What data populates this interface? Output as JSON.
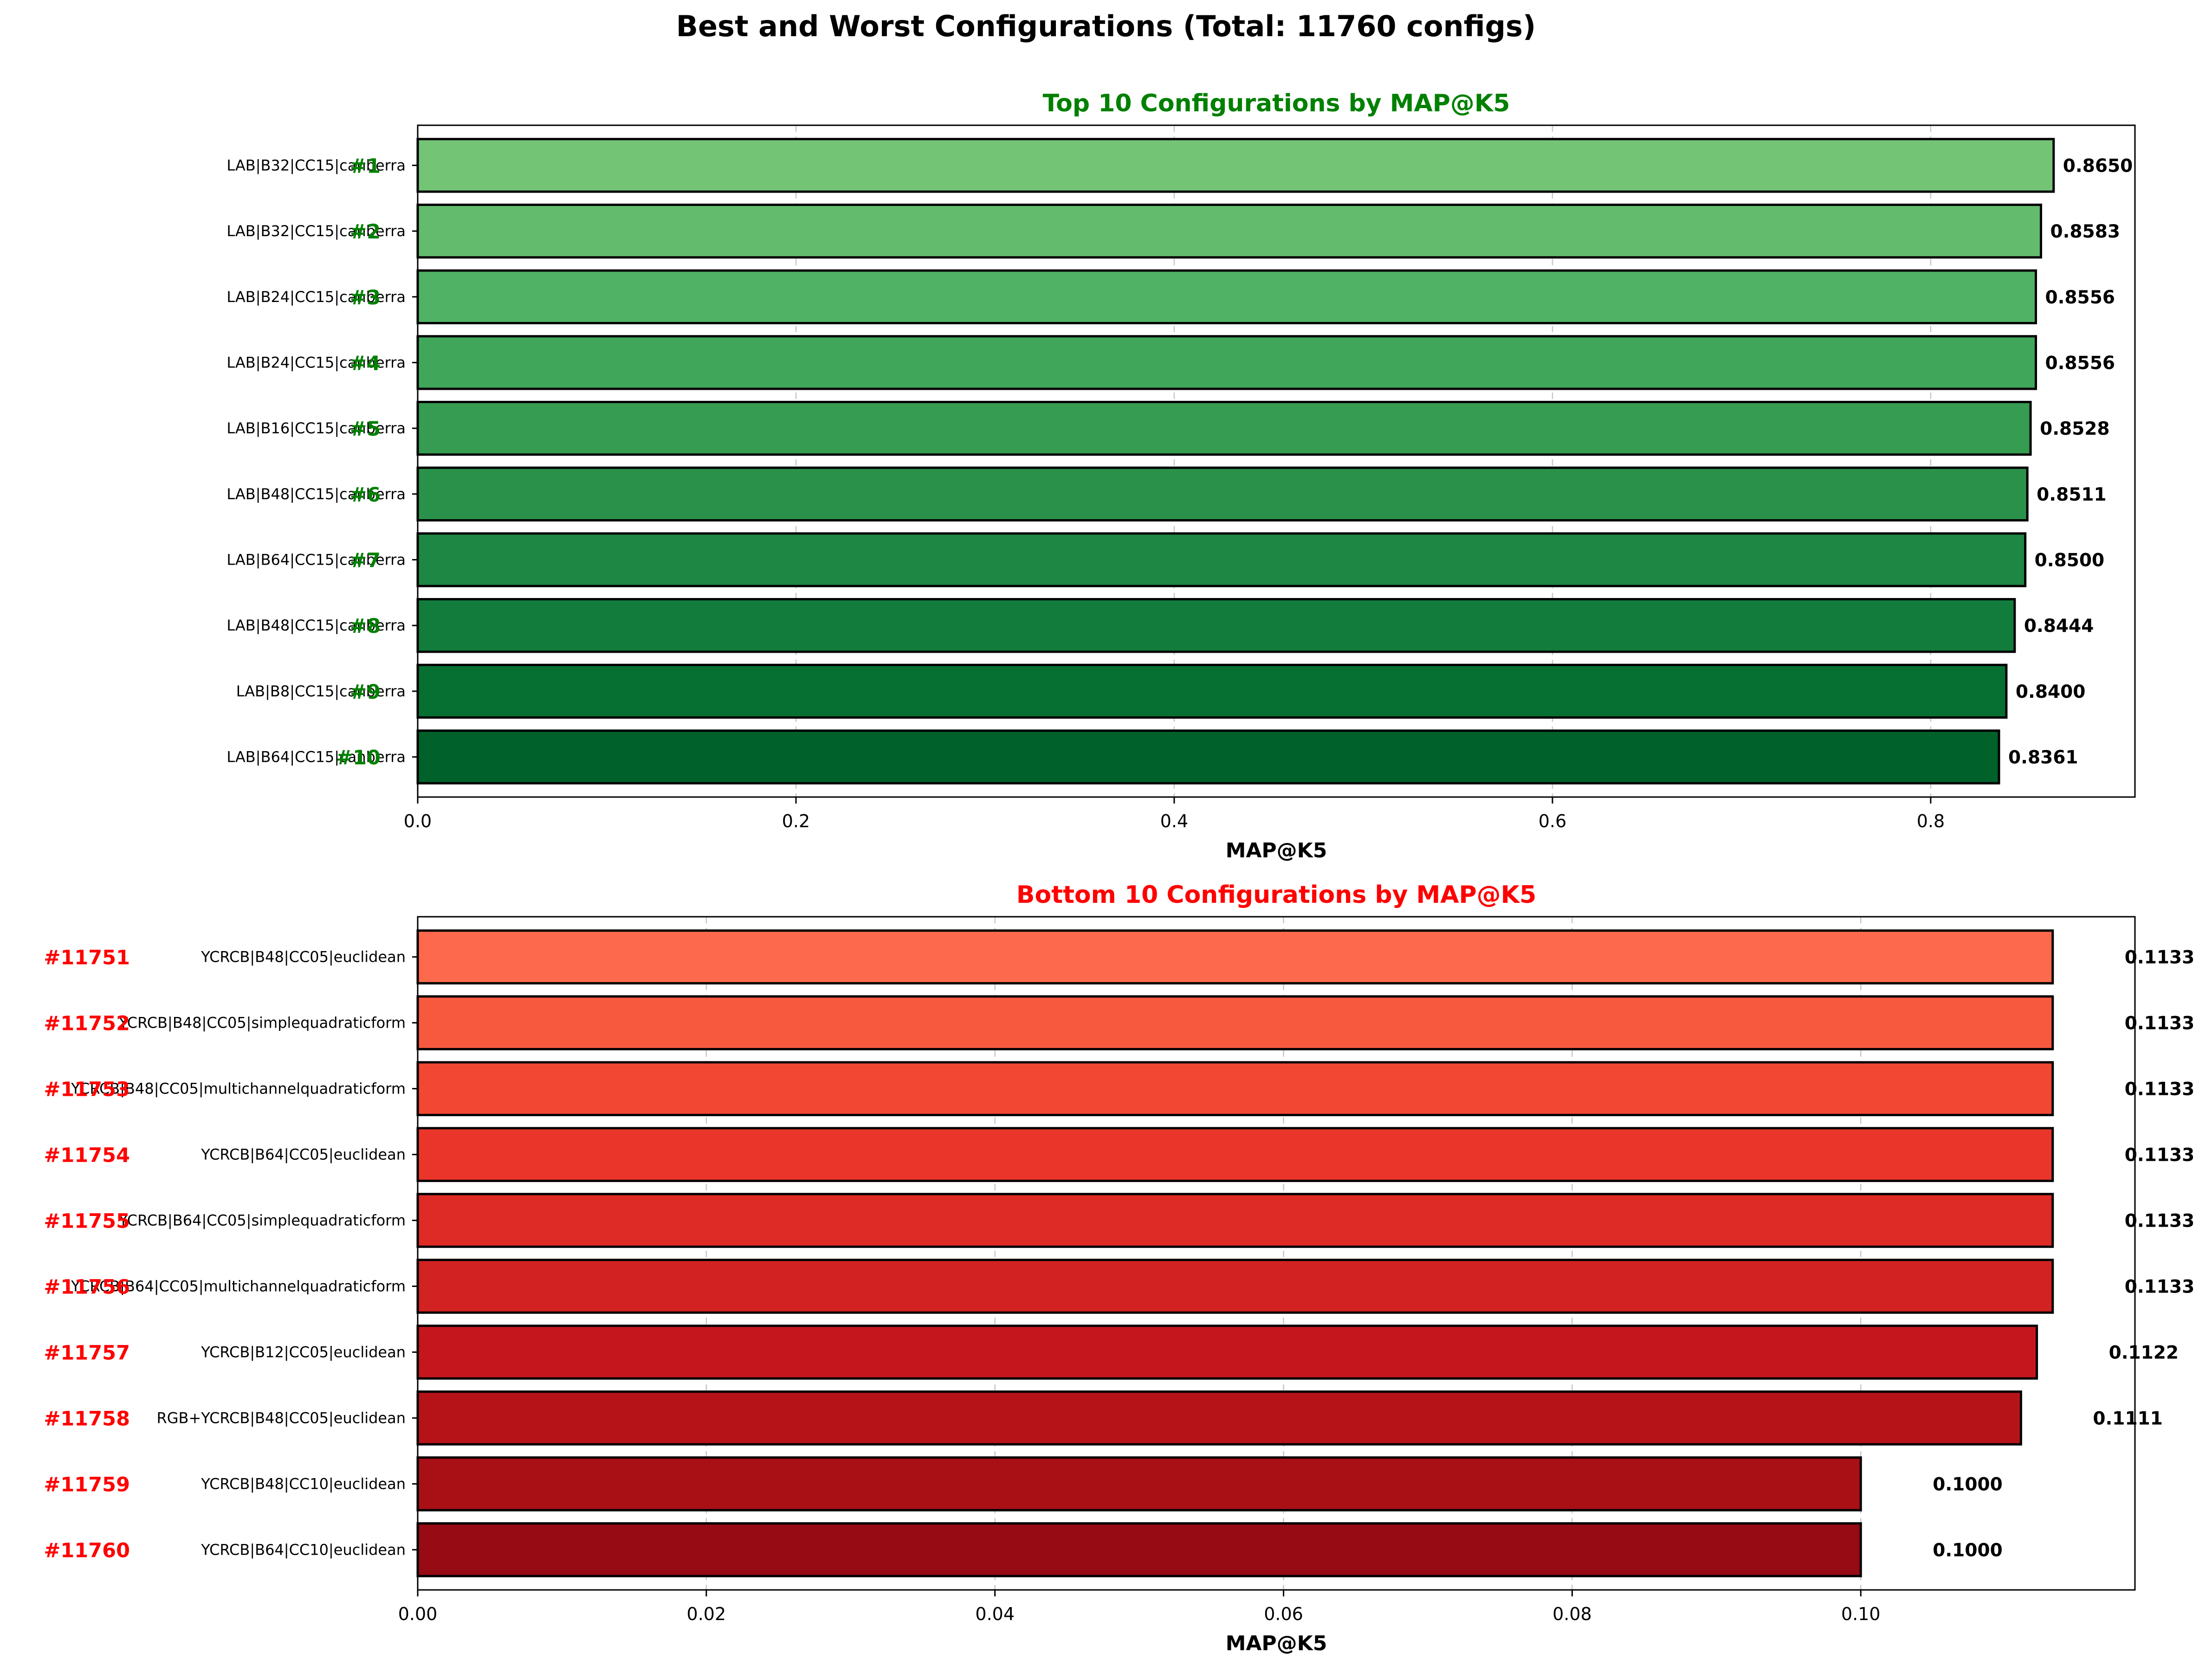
{
  "figure": {
    "suptitle": "Best and Worst Configurations (Total: 11760 configs)"
  },
  "chart_data": [
    {
      "type": "bar",
      "orientation": "horizontal",
      "title": "Top 10 Configurations by MAP@K5",
      "title_color": "#008000",
      "xlabel": "MAP@K5",
      "ylabel": "",
      "xlim": [
        0,
        0.908
      ],
      "xticks": [
        0.0,
        0.2,
        0.4,
        0.6,
        0.8
      ],
      "tick_labels": [
        "0.0",
        "0.2",
        "0.4",
        "0.6",
        "0.8"
      ],
      "grid": "x-dashed",
      "rank_color": "#008000",
      "bars": [
        {
          "label": "LAB|B32|CC15|canberra",
          "rank": "#1",
          "value": 0.865,
          "value_label": "0.8650",
          "color": "#74c476"
        },
        {
          "label": "LAB|B32|CC15|canberra",
          "rank": "#2",
          "value": 0.8583,
          "value_label": "0.8583",
          "color": "#63bb6e"
        },
        {
          "label": "LAB|B24|CC15|canberra",
          "rank": "#3",
          "value": 0.8556,
          "value_label": "0.8556",
          "color": "#4fb264"
        },
        {
          "label": "LAB|B24|CC15|canberra",
          "rank": "#4",
          "value": 0.8556,
          "value_label": "0.8556",
          "color": "#40a75a"
        },
        {
          "label": "LAB|B16|CC15|canberra",
          "rank": "#5",
          "value": 0.8528,
          "value_label": "0.8528",
          "color": "#359c51"
        },
        {
          "label": "LAB|B48|CC15|canberra",
          "rank": "#6",
          "value": 0.8511,
          "value_label": "0.8511",
          "color": "#2a914a"
        },
        {
          "label": "LAB|B64|CC15|canberra",
          "rank": "#7",
          "value": 0.85,
          "value_label": "0.8500",
          "color": "#1e8744"
        },
        {
          "label": "LAB|B48|CC15|canberra",
          "rank": "#8",
          "value": 0.8444,
          "value_label": "0.8444",
          "color": "#127c3d"
        },
        {
          "label": "LAB|B8|CC15|canberra",
          "rank": "#9",
          "value": 0.84,
          "value_label": "0.8400",
          "color": "#067033"
        },
        {
          "label": "LAB|B64|CC15|canberra",
          "rank": "#10",
          "value": 0.8361,
          "value_label": "0.8361",
          "color": "#00612b"
        }
      ]
    },
    {
      "type": "bar",
      "orientation": "horizontal",
      "title": "Bottom 10 Configurations by MAP@K5",
      "title_color": "#ff0000",
      "xlabel": "MAP@K5",
      "ylabel": "",
      "xlim": [
        0,
        0.119
      ],
      "xticks": [
        0.0,
        0.02,
        0.04,
        0.06,
        0.08,
        0.1
      ],
      "tick_labels": [
        "0.00",
        "0.02",
        "0.04",
        "0.06",
        "0.08",
        "0.10"
      ],
      "grid": "x-dashed",
      "rank_color": "#ff0000",
      "bars": [
        {
          "label": "YCRCB|B48|CC05|euclidean",
          "rank": "#11751",
          "value": 0.1133,
          "value_label": "0.1133",
          "color": "#fc694c"
        },
        {
          "label": "YCRCB|B48|CC05|simplequadraticform",
          "rank": "#11752",
          "value": 0.1133,
          "value_label": "0.1133",
          "color": "#f7593f"
        },
        {
          "label": "YCRCB|B48|CC05|multichannelquadraticform",
          "rank": "#11753",
          "value": 0.1133,
          "value_label": "0.1133",
          "color": "#f14733"
        },
        {
          "label": "YCRCB|B64|CC05|euclidean",
          "rank": "#11754",
          "value": 0.1133,
          "value_label": "0.1133",
          "color": "#ea362a"
        },
        {
          "label": "YCRCB|B64|CC05|simplequadraticform",
          "rank": "#11755",
          "value": 0.1133,
          "value_label": "0.1133",
          "color": "#de2b25"
        },
        {
          "label": "YCRCB|B64|CC05|multichannelquadraticform",
          "rank": "#11756",
          "value": 0.1133,
          "value_label": "0.1133",
          "color": "#d22221"
        },
        {
          "label": "YCRCB|B12|CC05|euclidean",
          "rank": "#11757",
          "value": 0.1122,
          "value_label": "0.1122",
          "color": "#c4161c"
        },
        {
          "label": "RGB+YCRCB|B48|CC05|euclidean",
          "rank": "#11758",
          "value": 0.1111,
          "value_label": "0.1111",
          "color": "#b61319"
        },
        {
          "label": "YCRCB|B48|CC10|euclidean",
          "rank": "#11759",
          "value": 0.1,
          "value_label": "0.1000",
          "color": "#a81016"
        },
        {
          "label": "YCRCB|B64|CC10|euclidean",
          "rank": "#11760",
          "value": 0.1,
          "value_label": "0.1000",
          "color": "#960b14"
        }
      ]
    }
  ]
}
